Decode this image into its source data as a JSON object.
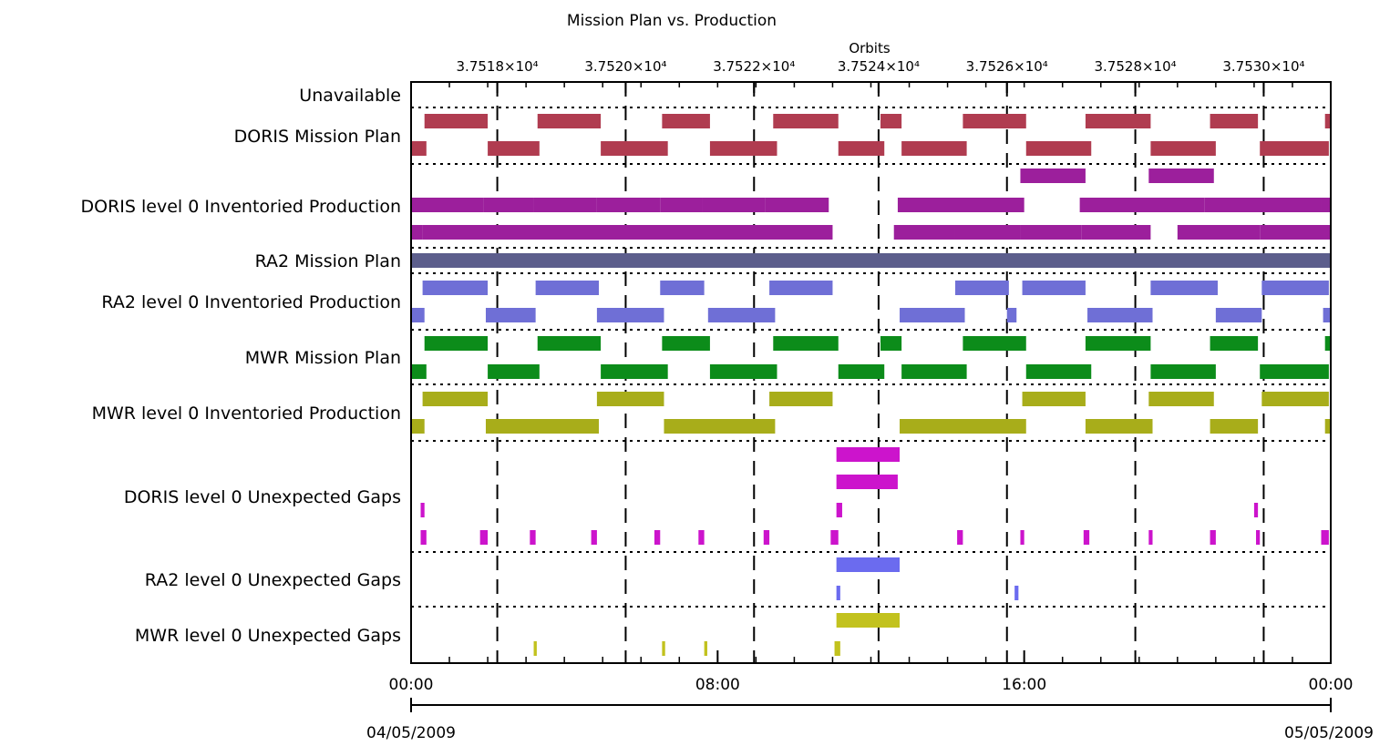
{
  "page": {
    "title": "Mission Plan vs. Production",
    "orbit_axis_label": "Orbits"
  },
  "chart_data": {
    "type": "gantt",
    "title": "Mission Plan vs. Production",
    "x_top": {
      "label": "Orbits",
      "ticks": [
        "3.7518×10⁴",
        "3.7520×10⁴",
        "3.7522×10⁴",
        "3.7524×10⁴",
        "3.7526×10⁴",
        "3.7528×10⁴",
        "3.7530×10⁴"
      ],
      "tick_hours": [
        2.25,
        5.6,
        8.95,
        12.2,
        15.55,
        18.9,
        22.25
      ]
    },
    "x_bottom": {
      "range_hours": [
        0,
        24
      ],
      "tick_labels": [
        "00:00",
        "08:00",
        "16:00",
        "00:00"
      ],
      "tick_hours": [
        0,
        8,
        16,
        24
      ],
      "start_date": "04/05/2009",
      "end_date": "05/05/2009"
    },
    "orbit_boundary_hours": [
      2.25,
      5.6,
      8.95,
      12.2,
      15.55,
      18.9,
      22.25
    ],
    "grid": "dotted-row-separators",
    "rows": [
      {
        "label": "Unavailable",
        "color": "#ffffff",
        "lines": [
          []
        ]
      },
      {
        "label": "DORIS Mission Plan",
        "color": "#b03c50",
        "lines": [
          [
            [
              0.35,
              2.0
            ],
            [
              3.3,
              4.95
            ],
            [
              6.55,
              7.8
            ],
            [
              9.45,
              11.15
            ],
            [
              12.25,
              12.8
            ],
            [
              14.4,
              16.05
            ],
            [
              17.6,
              19.3
            ],
            [
              20.85,
              22.1
            ],
            [
              23.85,
              24
            ]
          ],
          [
            [
              0.0,
              0.4
            ],
            [
              2.0,
              3.35
            ],
            [
              4.95,
              6.7
            ],
            [
              7.8,
              9.55
            ],
            [
              11.15,
              12.35
            ],
            [
              12.8,
              14.5
            ],
            [
              16.05,
              17.75
            ],
            [
              19.3,
              21.0
            ],
            [
              22.15,
              23.95
            ]
          ]
        ]
      },
      {
        "label": "DORIS level 0 Inventoried Production",
        "color": "#9c1f9c",
        "lines": [
          [
            [
              15.9,
              17.6
            ],
            [
              19.25,
              20.95
            ]
          ],
          [
            [
              0.0,
              1.9
            ],
            [
              1.9,
              3.2
            ],
            [
              3.2,
              4.85
            ],
            [
              4.85,
              6.5
            ],
            [
              6.5,
              7.6
            ],
            [
              7.6,
              9.25
            ],
            [
              9.25,
              10.9
            ],
            [
              12.7,
              16.0
            ],
            [
              17.45,
              20.7
            ],
            [
              20.7,
              23.75
            ],
            [
              23.75,
              24.0
            ]
          ],
          [
            [
              0.0,
              0.3
            ],
            [
              0.3,
              11.0
            ],
            [
              12.6,
              14.2
            ],
            [
              14.2,
              15.9
            ],
            [
              15.9,
              17.5
            ],
            [
              17.5,
              19.3
            ],
            [
              20.0,
              22.15
            ],
            [
              22.15,
              24.0
            ]
          ]
        ]
      },
      {
        "label": "RA2 Mission Plan",
        "color": "#5c5e8c",
        "lines": [
          [
            [
              0.0,
              24.0
            ]
          ]
        ]
      },
      {
        "label": "RA2 level 0 Inventoried Production",
        "color": "#6f6fd6",
        "lines": [
          [
            [
              0.3,
              2.0
            ],
            [
              3.25,
              4.9
            ],
            [
              6.5,
              7.65
            ],
            [
              9.35,
              11.0
            ],
            [
              14.2,
              15.6
            ],
            [
              15.95,
              17.6
            ],
            [
              19.3,
              21.05
            ],
            [
              22.2,
              23.95
            ]
          ],
          [
            [
              0.0,
              0.35
            ],
            [
              1.95,
              3.25
            ],
            [
              4.85,
              6.6
            ],
            [
              7.75,
              9.5
            ],
            [
              12.75,
              14.45
            ],
            [
              15.55,
              15.8
            ],
            [
              17.65,
              19.35
            ],
            [
              21.0,
              22.2
            ],
            [
              23.8,
              24.0
            ]
          ]
        ]
      },
      {
        "label": "MWR Mission Plan",
        "color": "#0c8c1a",
        "lines": [
          [
            [
              0.35,
              2.0
            ],
            [
              3.3,
              4.95
            ],
            [
              6.55,
              7.8
            ],
            [
              9.45,
              11.15
            ],
            [
              12.25,
              12.8
            ],
            [
              14.4,
              16.05
            ],
            [
              17.6,
              19.3
            ],
            [
              20.85,
              22.1
            ],
            [
              23.85,
              24.0
            ]
          ],
          [
            [
              0.0,
              0.4
            ],
            [
              2.0,
              3.35
            ],
            [
              4.95,
              6.7
            ],
            [
              7.8,
              9.55
            ],
            [
              11.15,
              12.35
            ],
            [
              12.8,
              14.5
            ],
            [
              16.05,
              17.75
            ],
            [
              19.3,
              21.0
            ],
            [
              22.15,
              23.95
            ]
          ]
        ]
      },
      {
        "label": "MWR level 0 Inventoried Production",
        "color": "#a8ad1a",
        "lines": [
          [
            [
              0.3,
              2.0
            ],
            [
              4.85,
              6.6
            ],
            [
              9.35,
              11.0
            ],
            [
              15.95,
              17.6
            ],
            [
              19.25,
              20.95
            ],
            [
              22.2,
              23.95
            ]
          ],
          [
            [
              0.0,
              0.35
            ],
            [
              1.95,
              4.9
            ],
            [
              6.6,
              9.5
            ],
            [
              12.75,
              16.05
            ],
            [
              17.6,
              19.35
            ],
            [
              20.85,
              22.1
            ],
            [
              23.85,
              24.0
            ]
          ]
        ]
      },
      {
        "label": "DORIS level 0 Unexpected Gaps",
        "color": "#cc14cc",
        "lines": [
          [
            [
              11.1,
              12.75
            ]
          ],
          [
            [
              11.1,
              12.7
            ]
          ],
          [
            [
              0.25,
              0.35
            ],
            [
              11.1,
              11.25
            ],
            [
              22.0,
              22.1
            ]
          ],
          [
            [
              0.25,
              0.4
            ],
            [
              1.8,
              2.0
            ],
            [
              3.1,
              3.25
            ],
            [
              4.7,
              4.85
            ],
            [
              6.35,
              6.5
            ],
            [
              7.5,
              7.65
            ],
            [
              9.2,
              9.35
            ],
            [
              10.95,
              11.15
            ],
            [
              14.25,
              14.4
            ],
            [
              15.9,
              16.0
            ],
            [
              17.55,
              17.7
            ],
            [
              19.25,
              19.35
            ],
            [
              20.85,
              21.0
            ],
            [
              22.05,
              22.15
            ],
            [
              23.75,
              23.95
            ]
          ]
        ]
      },
      {
        "label": "RA2 level 0 Unexpected Gaps",
        "color": "#6b6bef",
        "lines": [
          [
            [
              11.1,
              12.75
            ]
          ],
          [
            [
              11.1,
              11.2
            ],
            [
              15.75,
              15.85
            ]
          ]
        ]
      },
      {
        "label": "MWR level 0 Unexpected Gaps",
        "color": "#c2c21e",
        "lines": [
          [
            [
              11.1,
              12.75
            ]
          ],
          [
            [
              3.2,
              3.28
            ],
            [
              6.55,
              6.63
            ],
            [
              7.65,
              7.73
            ],
            [
              11.05,
              11.2
            ]
          ]
        ]
      }
    ]
  }
}
